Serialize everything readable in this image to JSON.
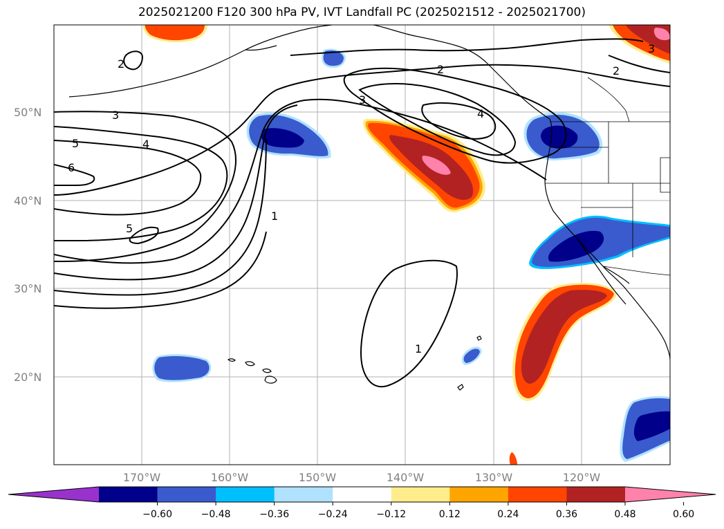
{
  "title": "2025021200 F120 300 hPa PV, IVT Landfall PC (2025021512 - 2025021700)",
  "lat_labels": [
    "20°N",
    "30°N",
    "40°N",
    "50°N"
  ],
  "lon_labels": [
    "170°W",
    "160°W",
    "150°W",
    "140°W",
    "130°W",
    "120°W"
  ],
  "contour_labels": [
    "1",
    "1",
    "2",
    "2",
    "2",
    "3",
    "3",
    "3",
    "4",
    "4",
    "5",
    "5",
    "6"
  ],
  "colorbar": {
    "colors": [
      "#9932cc",
      "#00008b",
      "#3a5bcd",
      "#00bfff",
      "#b0e2ff",
      "#ffffff",
      "#ffec8b",
      "#ffa500",
      "#ff4500",
      "#b22222",
      "#ff82ab"
    ],
    "ticks": [
      "−0.60",
      "−0.48",
      "−0.36",
      "−0.24",
      "−0.12",
      "0.12",
      "0.24",
      "0.36",
      "0.48",
      "0.60"
    ]
  }
}
